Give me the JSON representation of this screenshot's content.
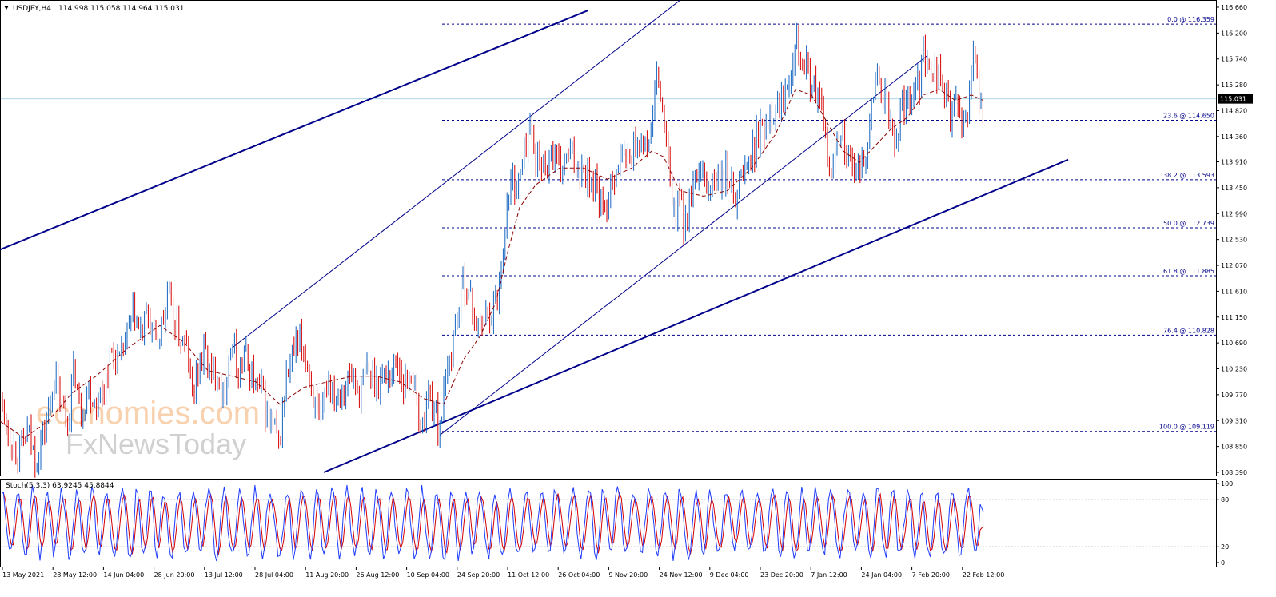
{
  "header": {
    "symbol": "USDJPY,H4",
    "ohlc": "114.998 115.058 114.964 115.031"
  },
  "watermark": {
    "line1": "economies.com",
    "line2": "FxNewsToday"
  },
  "colors": {
    "bull": "#1565c0",
    "bear": "#d50000",
    "trendline": "#00008b",
    "fib": "#00008b",
    "ma": "#8b0000",
    "price_line": "#add8e6",
    "stoch_main": "#1e3cff",
    "stoch_signal": "#d50000",
    "watermark": "#f7c9a1"
  },
  "chart_data": [
    {
      "type": "candlestick",
      "symbol": "USDJPY",
      "timeframe": "H4",
      "ylim": [
        108.39,
        116.66
      ],
      "y_ticks": [
        "116.660",
        "116.200",
        "115.740",
        "115.280",
        "114.820",
        "114.360",
        "113.910",
        "113.450",
        "112.990",
        "112.530",
        "112.070",
        "111.610",
        "111.150",
        "110.690",
        "110.230",
        "109.770",
        "109.310",
        "108.850",
        "108.390"
      ],
      "x_ticks": [
        "13 May 2021",
        "28 May 12:00",
        "14 Jun 04:00",
        "28 Jun 20:00",
        "13 Jul 12:00",
        "28 Jul 04:00",
        "11 Aug 20:00",
        "26 Aug 12:00",
        "10 Sep 04:00",
        "24 Sep 20:00",
        "11 Oct 12:00",
        "26 Oct 04:00",
        "9 Nov 20:00",
        "24 Nov 12:00",
        "9 Dec 04:00",
        "23 Dec 20:00",
        "7 Jan 12:00",
        "24 Jan 04:00",
        "7 Feb 20:00",
        "22 Feb 12:00"
      ],
      "current_price": "115.031",
      "fibonacci": [
        {
          "label": "0.0 @ 116.359",
          "value": 116.359
        },
        {
          "label": "23.6 @ 114.650",
          "value": 114.65
        },
        {
          "label": "38.2 @ 113.593",
          "value": 113.593
        },
        {
          "label": "50.0 @ 112.739",
          "value": 112.739
        },
        {
          "label": "61.8 @ 111.885",
          "value": 111.885
        },
        {
          "label": "76.4 @ 110.828",
          "value": 110.828
        },
        {
          "label": "100.0 @ 109.119",
          "value": 109.119
        }
      ],
      "price_path": [
        [
          0,
          109.7
        ],
        [
          15,
          108.9
        ],
        [
          25,
          108.75
        ],
        [
          35,
          109.1
        ],
        [
          45,
          108.6
        ],
        [
          60,
          109.4
        ],
        [
          68,
          110.1
        ],
        [
          75,
          109.6
        ],
        [
          85,
          109.3
        ],
        [
          93,
          110.3
        ],
        [
          100,
          109.4
        ],
        [
          110,
          109.9
        ],
        [
          120,
          109.6
        ],
        [
          130,
          109.9
        ],
        [
          140,
          110.5
        ],
        [
          150,
          110.3
        ],
        [
          160,
          110.9
        ],
        [
          168,
          111.2
        ],
        [
          175,
          110.8
        ],
        [
          185,
          111.2
        ],
        [
          195,
          110.7
        ],
        [
          205,
          111.1
        ],
        [
          210,
          111.6
        ],
        [
          215,
          111.1
        ],
        [
          225,
          110.8
        ],
        [
          235,
          110.5
        ],
        [
          240,
          109.7
        ],
        [
          250,
          110.4
        ],
        [
          258,
          110.5
        ],
        [
          265,
          110.0
        ],
        [
          272,
          110.3
        ],
        [
          278,
          109.6
        ],
        [
          285,
          110.4
        ],
        [
          292,
          110.6
        ],
        [
          298,
          110.1
        ],
        [
          305,
          110.5
        ],
        [
          312,
          110.2
        ],
        [
          320,
          109.9
        ],
        [
          328,
          109.8
        ],
        [
          335,
          109.3
        ],
        [
          342,
          109.2
        ],
        [
          349,
          108.8
        ],
        [
          355,
          109.7
        ],
        [
          360,
          110.2
        ],
        [
          368,
          110.5
        ],
        [
          376,
          110.7
        ],
        [
          385,
          110.3
        ],
        [
          395,
          109.5
        ],
        [
          400,
          109.1
        ],
        [
          410,
          110.1
        ],
        [
          420,
          109.8
        ],
        [
          430,
          109.9
        ],
        [
          440,
          110.1
        ],
        [
          450,
          109.8
        ],
        [
          460,
          110.2
        ],
        [
          470,
          110.0
        ],
        [
          480,
          110.1
        ],
        [
          490,
          110.2
        ],
        [
          497,
          110.4
        ],
        [
          505,
          109.9
        ],
        [
          515,
          110.2
        ],
        [
          522,
          109.5
        ],
        [
          528,
          109.1
        ],
        [
          535,
          109.8
        ],
        [
          542,
          109.6
        ],
        [
          548,
          109.2
        ],
        [
          553,
          109.5
        ],
        [
          560,
          110.2
        ],
        [
          568,
          110.9
        ],
        [
          575,
          111.4
        ],
        [
          580,
          111.9
        ],
        [
          587,
          111.5
        ],
        [
          593,
          111.2
        ],
        [
          600,
          110.9
        ],
        [
          608,
          111.2
        ],
        [
          615,
          111.3
        ],
        [
          622,
          111.5
        ],
        [
          628,
          112.2
        ],
        [
          633,
          113.0
        ],
        [
          640,
          113.6
        ],
        [
          648,
          113.5
        ],
        [
          655,
          114.0
        ],
        [
          662,
          114.6
        ],
        [
          670,
          114.0
        ],
        [
          678,
          113.8
        ],
        [
          685,
          113.9
        ],
        [
          690,
          114.1
        ],
        [
          700,
          113.7
        ],
        [
          710,
          114.0
        ],
        [
          720,
          113.9
        ],
        [
          730,
          113.8
        ],
        [
          740,
          113.6
        ],
        [
          748,
          113.4
        ],
        [
          756,
          112.8
        ],
        [
          762,
          113.5
        ],
        [
          770,
          113.8
        ],
        [
          778,
          114.0
        ],
        [
          786,
          113.9
        ],
        [
          793,
          114.2
        ],
        [
          800,
          114.3
        ],
        [
          808,
          114.1
        ],
        [
          816,
          114.6
        ],
        [
          820,
          115.4
        ],
        [
          826,
          115.1
        ],
        [
          832,
          114.4
        ],
        [
          838,
          113.5
        ],
        [
          845,
          112.9
        ],
        [
          850,
          113.3
        ],
        [
          856,
          112.8
        ],
        [
          862,
          113.2
        ],
        [
          870,
          113.5
        ],
        [
          878,
          113.6
        ],
        [
          886,
          113.4
        ],
        [
          894,
          113.6
        ],
        [
          902,
          113.5
        ],
        [
          910,
          113.7
        ],
        [
          918,
          113.3
        ],
        [
          925,
          113.6
        ],
        [
          932,
          113.8
        ],
        [
          940,
          114.0
        ],
        [
          948,
          114.4
        ],
        [
          956,
          114.5
        ],
        [
          962,
          114.8
        ],
        [
          970,
          114.9
        ],
        [
          978,
          115.0
        ],
        [
          985,
          115.4
        ],
        [
          990,
          115.7
        ],
        [
          995,
          116.3
        ],
        [
          1000,
          115.9
        ],
        [
          1008,
          115.6
        ],
        [
          1015,
          115.3
        ],
        [
          1022,
          115.1
        ],
        [
          1030,
          114.6
        ],
        [
          1035,
          114.0
        ],
        [
          1040,
          113.5
        ],
        [
          1046,
          114.4
        ],
        [
          1052,
          114.6
        ],
        [
          1058,
          114.1
        ],
        [
          1065,
          113.8
        ],
        [
          1072,
          113.6
        ],
        [
          1078,
          113.9
        ],
        [
          1084,
          114.2
        ],
        [
          1090,
          114.8
        ],
        [
          1096,
          115.5
        ],
        [
          1102,
          115.2
        ],
        [
          1108,
          115.0
        ],
        [
          1114,
          114.5
        ],
        [
          1120,
          114.2
        ],
        [
          1126,
          114.8
        ],
        [
          1132,
          114.9
        ],
        [
          1138,
          115.1
        ],
        [
          1144,
          115.4
        ],
        [
          1150,
          115.3
        ],
        [
          1154,
          116.3
        ],
        [
          1158,
          115.7
        ],
        [
          1164,
          115.4
        ],
        [
          1170,
          115.6
        ],
        [
          1176,
          115.3
        ],
        [
          1182,
          115.2
        ],
        [
          1188,
          114.7
        ],
        [
          1194,
          115.0
        ],
        [
          1200,
          114.6
        ],
        [
          1206,
          114.9
        ],
        [
          1210,
          114.5
        ],
        [
          1214,
          115.4
        ],
        [
          1218,
          115.7
        ],
        [
          1222,
          115.5
        ],
        [
          1226,
          114.8
        ],
        [
          1230,
          115.0
        ]
      ],
      "moving_average": [
        [
          0,
          109.3
        ],
        [
          30,
          109.0
        ],
        [
          60,
          109.3
        ],
        [
          90,
          109.8
        ],
        [
          120,
          110.1
        ],
        [
          160,
          110.6
        ],
        [
          200,
          111.0
        ],
        [
          230,
          110.7
        ],
        [
          260,
          110.2
        ],
        [
          290,
          110.1
        ],
        [
          320,
          110.0
        ],
        [
          350,
          109.6
        ],
        [
          380,
          109.9
        ],
        [
          410,
          110.0
        ],
        [
          440,
          110.1
        ],
        [
          470,
          110.1
        ],
        [
          500,
          110.0
        ],
        [
          530,
          109.7
        ],
        [
          555,
          109.6
        ],
        [
          580,
          110.4
        ],
        [
          600,
          110.8
        ],
        [
          620,
          111.4
        ],
        [
          635,
          112.3
        ],
        [
          650,
          113.1
        ],
        [
          670,
          113.5
        ],
        [
          700,
          113.8
        ],
        [
          730,
          113.8
        ],
        [
          760,
          113.6
        ],
        [
          790,
          113.8
        ],
        [
          815,
          114.1
        ],
        [
          830,
          114.0
        ],
        [
          850,
          113.4
        ],
        [
          880,
          113.3
        ],
        [
          910,
          113.4
        ],
        [
          940,
          113.8
        ],
        [
          970,
          114.4
        ],
        [
          995,
          115.2
        ],
        [
          1015,
          115.1
        ],
        [
          1035,
          114.6
        ],
        [
          1055,
          114.1
        ],
        [
          1075,
          113.9
        ],
        [
          1095,
          114.2
        ],
        [
          1115,
          114.5
        ],
        [
          1135,
          114.7
        ],
        [
          1155,
          115.1
        ],
        [
          1175,
          115.2
        ],
        [
          1195,
          115.0
        ],
        [
          1215,
          115.1
        ],
        [
          1230,
          115.0
        ]
      ],
      "trendlines": [
        {
          "from": [
            0,
            112.35
          ],
          "to": [
            735,
            116.6
          ]
        },
        {
          "from": [
            290,
            110.6
          ],
          "to": [
            852,
            116.8
          ]
        },
        {
          "from": [
            405,
            108.39
          ],
          "to": [
            1336,
            113.95
          ]
        },
        {
          "from": [
            550,
            109.05
          ],
          "to": [
            1160,
            115.8
          ]
        }
      ]
    },
    {
      "type": "line",
      "indicator": "Stoch(5,3,3)",
      "label": "Stoch(5,3,3) 63.9245 45.8844",
      "ylim": [
        0,
        100
      ],
      "y_ticks": [
        "100",
        "80",
        "20",
        "0"
      ],
      "levels": [
        80,
        20
      ],
      "series": [
        {
          "name": "main",
          "last": 63.9245
        },
        {
          "name": "signal",
          "last": 45.8844
        }
      ]
    }
  ]
}
